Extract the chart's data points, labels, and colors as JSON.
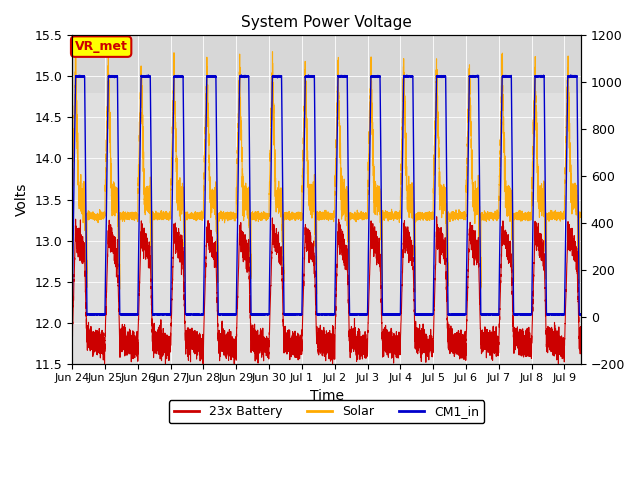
{
  "title": "System Power Voltage",
  "xlabel": "Time",
  "ylabel": "Volts",
  "ylim_left": [
    11.5,
    15.5
  ],
  "ylim_right": [
    -200,
    1200
  ],
  "yticks_left": [
    11.5,
    12.0,
    12.5,
    13.0,
    13.5,
    14.0,
    14.5,
    15.0,
    15.5
  ],
  "yticks_right": [
    -200,
    0,
    200,
    400,
    600,
    800,
    1000,
    1200
  ],
  "xlim": [
    0,
    15.5
  ],
  "battery_color": "#cc0000",
  "solar_color": "#ffaa00",
  "cm1_color": "#0000cc",
  "vr_met_bg": "#ffff00",
  "vr_met_border": "#cc0000",
  "plot_bg": "#e0e0e0",
  "legend_labels": [
    "23x Battery",
    "Solar",
    "CM1_in"
  ],
  "annotation_text": "VR_met",
  "xtick_positions": [
    0,
    1,
    2,
    3,
    4,
    5,
    6,
    7,
    8,
    9,
    10,
    11,
    12,
    13,
    14,
    15
  ],
  "xtick_labels": [
    "Jun 24",
    "Jun 25",
    "Jun 26",
    "Jun 27",
    "Jun 28",
    "Jun 29",
    "Jun 30",
    "Jul 1",
    "Jul 2",
    "Jul 3",
    "Jul 4",
    "Jul 5",
    "Jul 6",
    "Jul 7",
    "Jul 8",
    "Jul 9"
  ],
  "cycle_period": 1.0,
  "rise_start": 0.0,
  "rise_end": 0.1,
  "high_end": 0.38,
  "fall_end": 0.45,
  "low_end": 1.0,
  "cm1_low_val": 12.1,
  "cm1_high_val": 15.0,
  "battery_low_val": 11.75,
  "battery_high_val": 13.1,
  "solar_day_base": 13.5,
  "solar_peak": 15.1
}
